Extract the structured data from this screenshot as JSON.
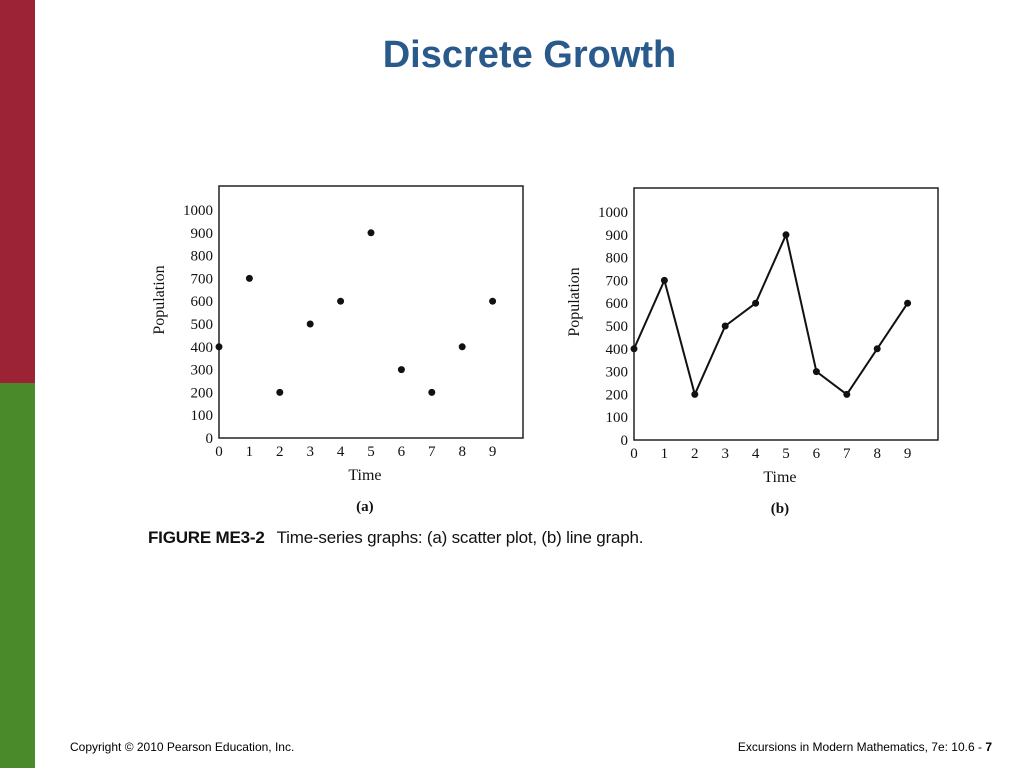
{
  "slide": {
    "title": "Discrete Growth",
    "colors": {
      "title": "#2a5a8c",
      "bar_top": "#9b2335",
      "bar_bottom": "#4a8a2a"
    }
  },
  "figure": {
    "label": "FIGURE ME3-2",
    "caption": "Time-series graphs: (a) scatter plot, (b) line graph."
  },
  "footer": {
    "copyright": "Copyright © 2010 Pearson Education, Inc.",
    "book": "Excursions in Modern Mathematics, 7e: 10.6 - ",
    "page": "7"
  },
  "chart_data": [
    {
      "type": "scatter",
      "panel_label": "(a)",
      "xlabel": "Time",
      "ylabel": "Population",
      "x": [
        0,
        1,
        2,
        3,
        4,
        5,
        6,
        7,
        8,
        9
      ],
      "y": [
        400,
        700,
        200,
        500,
        600,
        900,
        300,
        200,
        400,
        600
      ],
      "xticks": [
        "0",
        "1",
        "2",
        "3",
        "4",
        "5",
        "6",
        "7",
        "8",
        "9"
      ],
      "yticks": [
        "0",
        "100",
        "200",
        "300",
        "400",
        "500",
        "600",
        "700",
        "800",
        "900",
        "1000"
      ],
      "xlim": [
        0,
        10
      ],
      "ylim": [
        0,
        1000
      ],
      "grid": false
    },
    {
      "type": "line",
      "panel_label": "(b)",
      "xlabel": "Time",
      "ylabel": "Population",
      "x": [
        0,
        1,
        2,
        3,
        4,
        5,
        6,
        7,
        8,
        9
      ],
      "y": [
        400,
        700,
        200,
        500,
        600,
        900,
        300,
        200,
        400,
        600
      ],
      "xticks": [
        "0",
        "1",
        "2",
        "3",
        "4",
        "5",
        "6",
        "7",
        "8",
        "9"
      ],
      "yticks": [
        "0",
        "100",
        "200",
        "300",
        "400",
        "500",
        "600",
        "700",
        "800",
        "900",
        "1000"
      ],
      "xlim": [
        0,
        10
      ],
      "ylim": [
        0,
        1000
      ],
      "grid": false
    }
  ]
}
